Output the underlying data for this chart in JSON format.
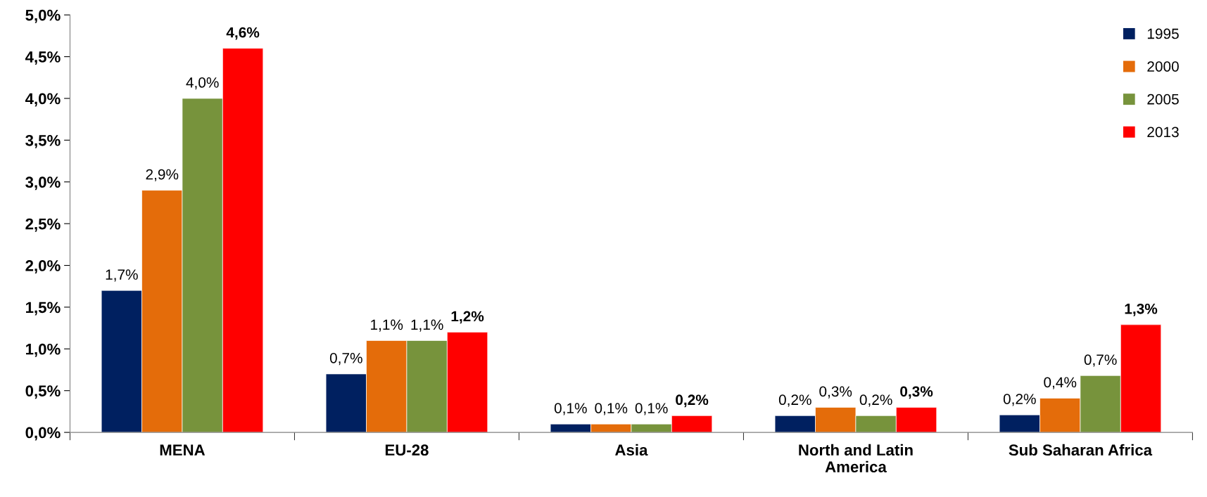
{
  "chart_data": {
    "type": "bar",
    "categories": [
      "MENA",
      "EU-28",
      "Asia",
      "North and Latin\nAmerica",
      "Sub Saharan Africa"
    ],
    "series": [
      {
        "name": "1995",
        "color": "#002060",
        "values": [
          1.7,
          0.7,
          0.1,
          0.2,
          0.21
        ],
        "value_labels": [
          "1,7%",
          "0,7%",
          "0,1%",
          "0,2%",
          "0,2%"
        ]
      },
      {
        "name": "2000",
        "color": "#e46c0a",
        "values": [
          2.9,
          1.1,
          0.1,
          0.3,
          0.41
        ],
        "value_labels": [
          "2,9%",
          "1,1%",
          "0,1%",
          "0,3%",
          "0,4%"
        ]
      },
      {
        "name": "2005",
        "color": "#77933c",
        "values": [
          4.0,
          1.1,
          0.1,
          0.2,
          0.68
        ],
        "value_labels": [
          "4,0%",
          "1,1%",
          "0,1%",
          "0,2%",
          "0,7%"
        ]
      },
      {
        "name": "2013",
        "color": "#ff0000",
        "values": [
          4.6,
          1.2,
          0.2,
          0.3,
          1.29
        ],
        "value_labels": [
          "4,6%",
          "1,2%",
          "0,2%",
          "0,3%",
          "1,3%"
        ]
      }
    ],
    "ylim": [
      0,
      5
    ],
    "yticks": [
      {
        "value": 0,
        "label": "0,0%"
      },
      {
        "value": 0.5,
        "label": "0,5%"
      },
      {
        "value": 1,
        "label": "1,0%"
      },
      {
        "value": 1.5,
        "label": "1,5%"
      },
      {
        "value": 2,
        "label": "2,0%"
      },
      {
        "value": 2.5,
        "label": "2,5%"
      },
      {
        "value": 3,
        "label": "3,0%"
      },
      {
        "value": 3.5,
        "label": "3,5%"
      },
      {
        "value": 4,
        "label": "4,0%"
      },
      {
        "value": 4.5,
        "label": "4,5%"
      },
      {
        "value": 5,
        "label": "5,0%"
      }
    ],
    "grid": false,
    "legend": "top right"
  }
}
